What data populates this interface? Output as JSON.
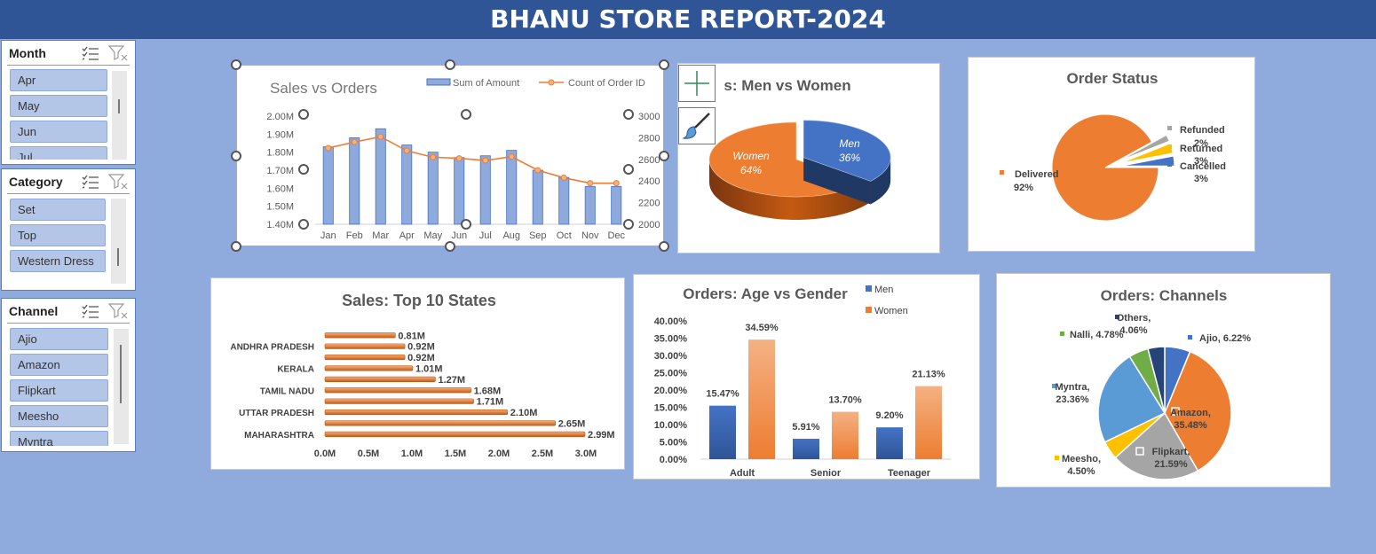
{
  "report_title": "BHANU STORE REPORT-2024",
  "slicers": {
    "month": {
      "title": "Month",
      "items": [
        "Apr",
        "May",
        "Jun",
        "Jul"
      ]
    },
    "category": {
      "title": "Category",
      "items": [
        "Set",
        "Top",
        "Western Dress"
      ]
    },
    "channel": {
      "title": "Channel",
      "items": [
        "Ajio",
        "Amazon",
        "Flipkart",
        "Meesho",
        "Myntra"
      ]
    }
  },
  "colors": {
    "header": "#2f5597",
    "background": "#8faadc",
    "orange": "#ed7d31",
    "blue": "#4472c4",
    "grey": "#a5a5a5",
    "yellow": "#ffc000",
    "lightblue": "#5b9bd5",
    "green": "#70ad47",
    "navy": "#264478",
    "bar_light": "#8ea9db"
  },
  "icons": {
    "multiselect": "multiselect-icon",
    "clear_filter": "clear-filter-icon",
    "add_element": "plus-icon",
    "style": "brush-icon"
  },
  "chart_data": [
    {
      "type": "bar",
      "title": "Sales vs Orders",
      "categories": [
        "Jan",
        "Feb",
        "Mar",
        "Apr",
        "May",
        "Jun",
        "Jul",
        "Aug",
        "Sep",
        "Oct",
        "Nov",
        "Dec"
      ],
      "series": [
        {
          "name": "Sum of Amount",
          "values": [
            1.83,
            1.88,
            1.93,
            1.84,
            1.8,
            1.77,
            1.78,
            1.81,
            1.7,
            1.66,
            1.61,
            1.61
          ],
          "axis": "left"
        },
        {
          "name": "Count of Order ID",
          "values": [
            2705,
            2760,
            2810,
            2680,
            2620,
            2610,
            2590,
            2625,
            2500,
            2430,
            2380,
            2380
          ],
          "axis": "right",
          "type": "line"
        }
      ],
      "y_ticks": [
        "2.00M",
        "1.90M",
        "1.80M",
        "1.70M",
        "1.60M",
        "1.50M",
        "1.40M"
      ],
      "ylim": [
        1.4,
        2.0
      ],
      "y2_ticks": [
        "3000",
        "2800",
        "2600",
        "2400",
        "2200",
        "2000"
      ],
      "y2lim": [
        2000,
        3000
      ],
      "legend": "top"
    },
    {
      "type": "pie",
      "title": "Sales: Men vs Women",
      "visible_title": "s: Men vs Women",
      "labels": [
        "Women",
        "Men"
      ],
      "values": [
        64,
        36
      ],
      "value_labels": [
        "64%",
        "36%"
      ]
    },
    {
      "type": "pie",
      "title": "Order Status",
      "labels": [
        "Delivered",
        "Refunded",
        "Returned",
        "Cancelled"
      ],
      "values": [
        92,
        2,
        3,
        3
      ],
      "value_labels": [
        "92%",
        "2%",
        "3%",
        "3%"
      ]
    },
    {
      "type": "bar",
      "orientation": "horizontal",
      "title": "Sales: Top 10 States",
      "categories": [
        "MAHARASHTRA",
        "",
        "UTTAR PRADESH",
        "",
        "TAMIL NADU",
        "",
        "KERALA",
        "",
        "ANDHRA PRADESH",
        ""
      ],
      "values": [
        2.99,
        2.65,
        2.1,
        1.71,
        1.68,
        1.27,
        1.01,
        0.92,
        0.92,
        0.81
      ],
      "value_labels": [
        "2.99M",
        "2.65M",
        "2.10M",
        "1.71M",
        "1.68M",
        "1.27M",
        "1.01M",
        "0.92M",
        "0.92M",
        "0.81M"
      ],
      "x_ticks": [
        "0.0M",
        "0.5M",
        "1.0M",
        "1.5M",
        "2.0M",
        "2.5M",
        "3.0M"
      ],
      "xlim": [
        0,
        3.0
      ]
    },
    {
      "type": "bar",
      "title": "Orders: Age vs Gender",
      "categories": [
        "Adult",
        "Senior",
        "Teenager"
      ],
      "series": [
        {
          "name": "Men",
          "values": [
            15.47,
            5.91,
            9.2
          ],
          "value_labels": [
            "15.47%",
            "5.91%",
            "9.20%"
          ]
        },
        {
          "name": "Women",
          "values": [
            34.59,
            13.7,
            21.13
          ],
          "value_labels": [
            "34.59%",
            "13.70%",
            "21.13%"
          ]
        }
      ],
      "y_ticks": [
        "40.00%",
        "35.00%",
        "30.00%",
        "25.00%",
        "20.00%",
        "15.00%",
        "10.00%",
        "5.00%",
        "0.00%"
      ],
      "ylim": [
        0,
        40
      ]
    },
    {
      "type": "pie",
      "title": "Orders: Channels",
      "labels": [
        "Ajio",
        "Amazon",
        "Flipkart",
        "Meesho",
        "Myntra",
        "Nalli",
        "Others"
      ],
      "values": [
        6.22,
        35.48,
        21.59,
        4.5,
        23.36,
        4.78,
        4.06
      ],
      "value_labels": [
        "6.22%",
        "35.48%",
        "21.59%",
        "4.50%",
        "23.36%",
        "4.78%",
        "4.06%"
      ]
    }
  ]
}
